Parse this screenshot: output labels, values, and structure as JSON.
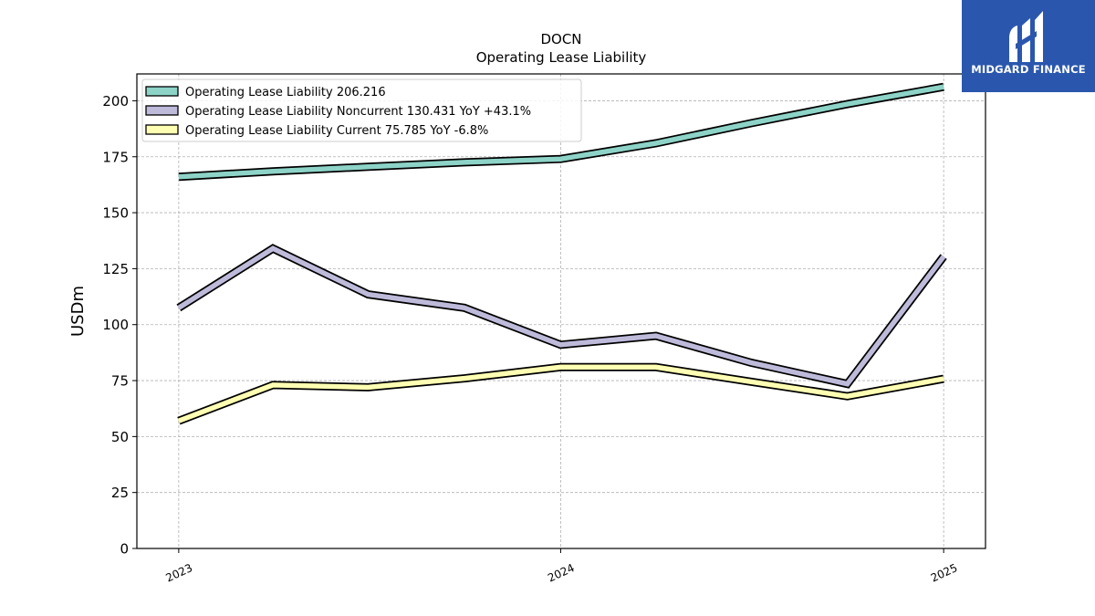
{
  "chart_data": {
    "type": "line",
    "title": "DOCN",
    "subtitle": "Operating Lease Liability",
    "xlabel": "",
    "ylabel": "USDm",
    "ylim": [
      0,
      212
    ],
    "yticks": [
      0,
      25,
      50,
      75,
      100,
      125,
      150,
      175,
      200
    ],
    "xlim": [
      "2022-11-22",
      "2025-02-10"
    ],
    "xticks": [
      {
        "date": "2023-01-01",
        "label": "2023"
      },
      {
        "date": "2024-01-01",
        "label": "2024"
      },
      {
        "date": "2025-01-01",
        "label": "2025"
      }
    ],
    "grid": true,
    "legend_position": "top-left",
    "x": [
      "2023-01-01",
      "2023-04-01",
      "2023-07-01",
      "2023-10-01",
      "2024-01-01",
      "2024-04-01",
      "2024-07-01",
      "2024-10-01",
      "2025-01-01"
    ],
    "series": [
      {
        "name": "Operating Lease Liability",
        "legend": "Operating Lease Liability  206.216",
        "color": "#8dd3c7",
        "values": [
          166.0,
          168.5,
          170.5,
          172.5,
          174.0,
          181.0,
          190.0,
          198.5,
          206.216
        ]
      },
      {
        "name": "Operating Lease Liability Noncurrent",
        "legend": "Operating Lease Liability Noncurrent  130.431 YoY +43.1%",
        "color": "#bebada",
        "values": [
          107.5,
          134.0,
          113.5,
          107.5,
          91.0,
          95.0,
          83.0,
          73.5,
          130.431
        ]
      },
      {
        "name": "Operating Lease Liability Current",
        "legend": "Operating Lease Liability Current  75.785 YoY -6.8%",
        "color": "#ffffb3",
        "values": [
          57.0,
          73.0,
          72.0,
          76.0,
          81.0,
          81.0,
          74.5,
          68.0,
          75.785
        ]
      }
    ]
  },
  "brand": {
    "name": "MIDGARD FINANCE",
    "color": "#2a57ad"
  }
}
